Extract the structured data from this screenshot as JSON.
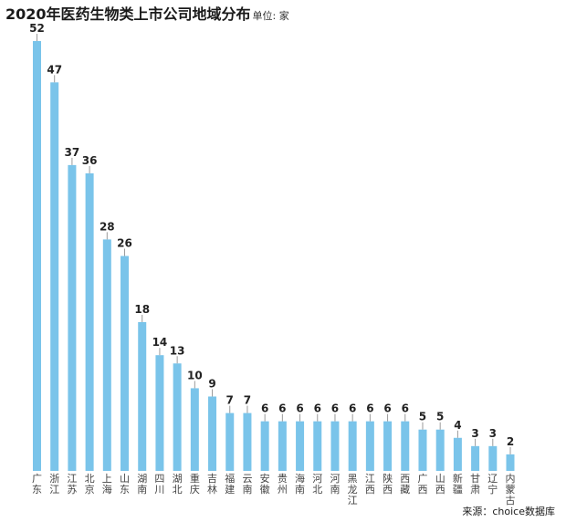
{
  "chart_data": {
    "type": "bar",
    "title": "2020年医药生物类上市公司地域分布",
    "unit": "单位: 家",
    "source": "来源：choice数据库",
    "categories": [
      "广东",
      "浙江",
      "江苏",
      "北京",
      "上海",
      "山东",
      "湖南",
      "四川",
      "湖北",
      "重庆",
      "吉林",
      "福建",
      "云南",
      "安徽",
      "贵州",
      "海南",
      "河北",
      "河南",
      "黑龙江",
      "江西",
      "陕西",
      "西藏",
      "广西",
      "山西",
      "新疆",
      "甘肃",
      "辽宁",
      "内蒙古"
    ],
    "values": [
      52,
      47,
      37,
      36,
      28,
      26,
      18,
      14,
      13,
      10,
      9,
      7,
      7,
      6,
      6,
      6,
      6,
      6,
      6,
      6,
      6,
      6,
      5,
      5,
      4,
      3,
      3,
      2
    ],
    "ylim": [
      0,
      52
    ],
    "grid": false,
    "bar_color": "#7ac4ea",
    "label_color": "#222222",
    "tick_color": "#9a9a9a"
  }
}
